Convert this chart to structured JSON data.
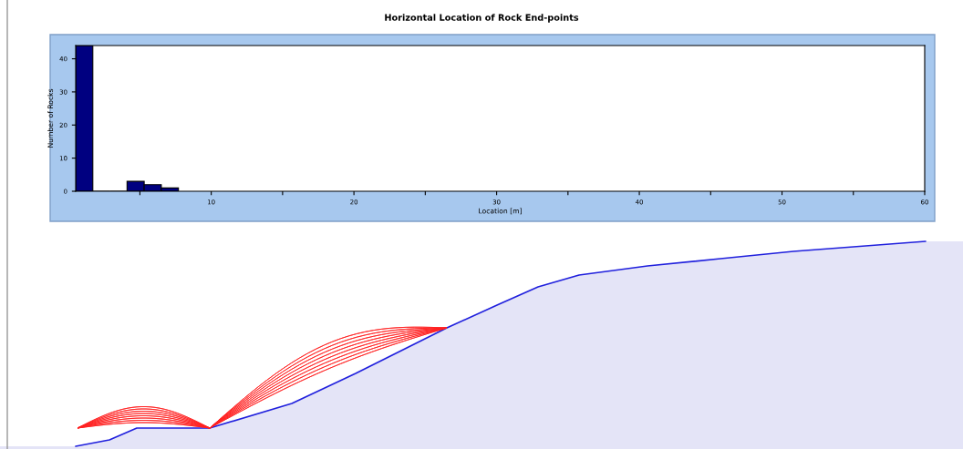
{
  "chart_data": {
    "type": "histogram",
    "title": "Horizontal Location of Rock End-points",
    "xlabel": "Location [m]",
    "ylabel": "Number of Rocks",
    "bins": [
      0.5,
      1.7,
      2.9,
      4.1,
      5.3,
      6.5,
      7.7
    ],
    "values": [
      44,
      0,
      0,
      3,
      2,
      1
    ],
    "color": "#000080",
    "xlim": [
      0.5,
      60
    ],
    "xticks": [
      {
        "value": 5,
        "label": null
      },
      10,
      {
        "value": 15,
        "label": null
      },
      20,
      {
        "value": 25,
        "label": null
      },
      30,
      {
        "value": 35,
        "label": null
      },
      40,
      {
        "value": 45,
        "label": null
      },
      50,
      {
        "value": 55,
        "label": null
      },
      60
    ],
    "ylim": [
      0,
      44
    ],
    "yticks": [
      0,
      10,
      20,
      30,
      40
    ],
    "grid": false,
    "legend": false
  }
}
